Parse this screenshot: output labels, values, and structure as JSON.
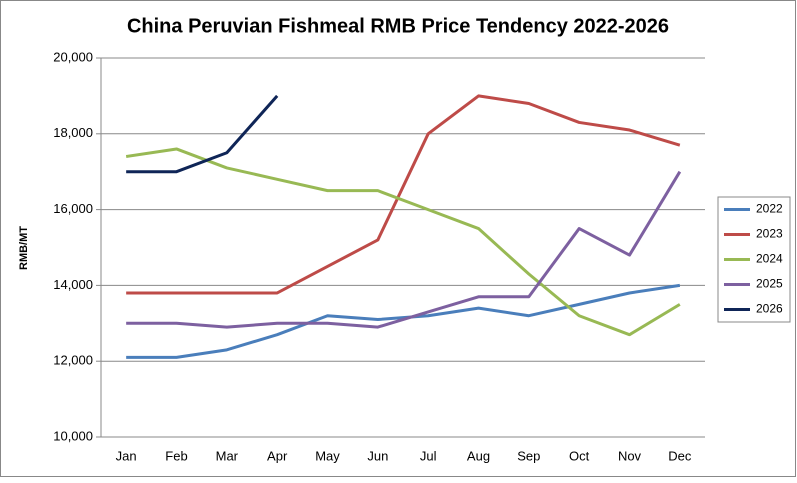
{
  "chart_data": {
    "type": "line",
    "title": "China Peruvian Fishmeal RMB Price Tendency 2022-2026",
    "y_label": "RMB/MT",
    "categories": [
      "Jan",
      "Feb",
      "Mar",
      "Apr",
      "May",
      "Jun",
      "Jul",
      "Aug",
      "Sep",
      "Oct",
      "Nov",
      "Dec"
    ],
    "series": [
      {
        "name": "2022",
        "color": "#4a7ebb",
        "values": [
          12100,
          12100,
          12300,
          12700,
          13200,
          13100,
          13200,
          13400,
          13200,
          13500,
          13800,
          14000
        ]
      },
      {
        "name": "2023",
        "color": "#be4b48",
        "values": [
          13800,
          13800,
          13800,
          13800,
          14500,
          15200,
          18000,
          19000,
          18800,
          18300,
          18100,
          17700
        ]
      },
      {
        "name": "2024",
        "color": "#98b954",
        "values": [
          17400,
          17600,
          17100,
          16800,
          16500,
          16500,
          16000,
          15500,
          14300,
          13200,
          12700,
          13500
        ]
      },
      {
        "name": "2025",
        "color": "#7d60a0",
        "values": [
          13000,
          13000,
          12900,
          13000,
          13000,
          12900,
          13300,
          13700,
          13700,
          15500,
          14800,
          17000
        ]
      },
      {
        "name": "2026",
        "color": "#0f2557",
        "values": [
          17000,
          17000,
          17500,
          19000,
          null,
          null,
          null,
          null,
          null,
          null,
          null,
          null
        ]
      }
    ],
    "ylim": [
      10000,
      20000
    ],
    "yticks": [
      {
        "value": 10000,
        "label": "10,000"
      },
      {
        "value": 12000,
        "label": "12,000"
      },
      {
        "value": 14000,
        "label": "14,000"
      },
      {
        "value": 16000,
        "label": "16,000"
      },
      {
        "value": 18000,
        "label": "18,000"
      },
      {
        "value": 20000,
        "label": "20,000"
      }
    ],
    "grid": true,
    "legend": "right"
  }
}
